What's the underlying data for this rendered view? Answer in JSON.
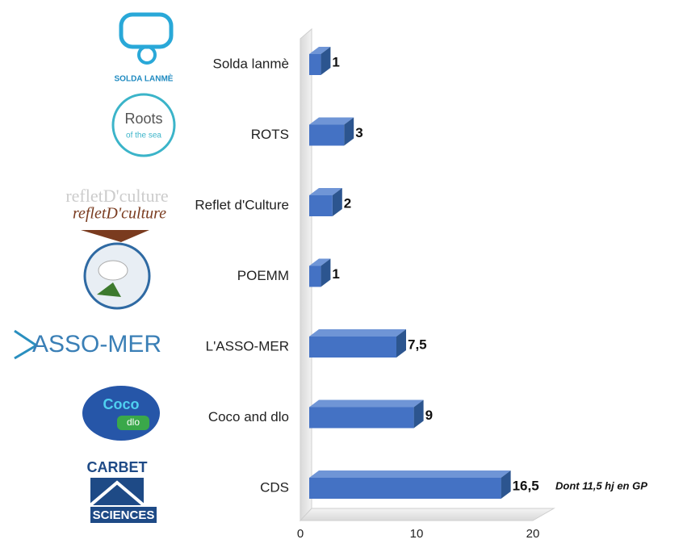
{
  "chart_data": {
    "type": "bar3d_horizontal",
    "categories": [
      "Solda lanmè",
      "ROTS",
      "Reflet d'Culture",
      "POEMM",
      "L'ASSO-MER",
      "Coco and dlo",
      "CDS"
    ],
    "values": [
      1,
      3,
      2,
      1,
      7.5,
      9,
      16.5
    ],
    "value_labels": [
      "1",
      "3",
      "2",
      "1",
      "7,5",
      "9",
      "16,5"
    ],
    "color": "#4472c4",
    "xlim": [
      0,
      20
    ],
    "xticks": [
      0,
      10,
      20
    ],
    "annotation": "Dont 11,5 hj en GP"
  },
  "logos": {
    "solda": "SOLDA LANMÈ",
    "roots": "Roots",
    "roots_sub": "of the sea",
    "reflet": "refletD'culture",
    "assomer": "ASSO-MER",
    "coco": "Coco",
    "coco_sub": "dlo",
    "cds": "CARBET",
    "cds_sub": "SCIENCES"
  }
}
